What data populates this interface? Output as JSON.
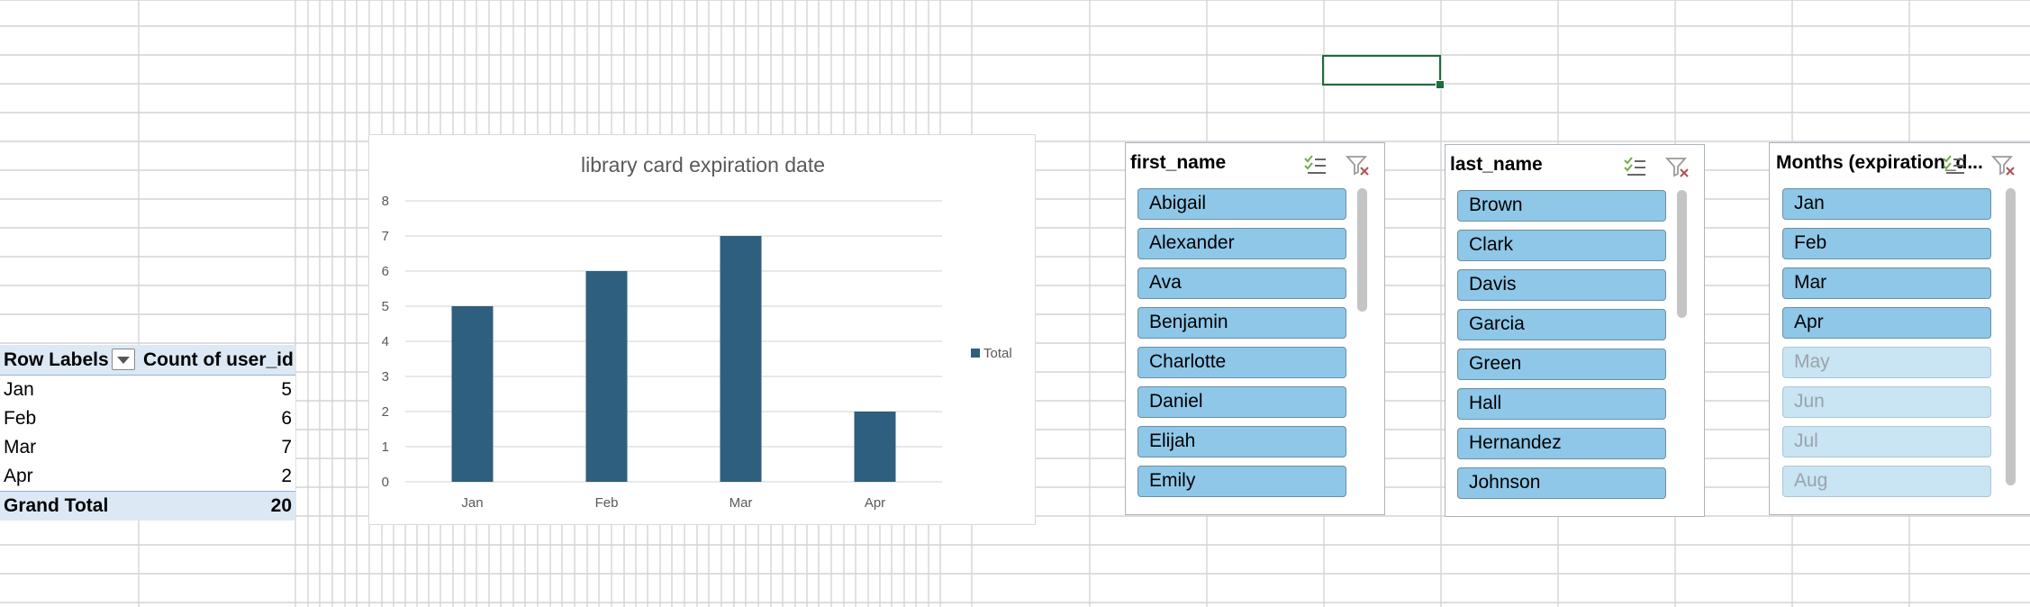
{
  "pivot": {
    "header_row_labels": "Row Labels",
    "header_value": "Count of user_id",
    "rows": [
      {
        "label": "Jan",
        "value": "5"
      },
      {
        "label": "Feb",
        "value": "6"
      },
      {
        "label": "Mar",
        "value": "7"
      },
      {
        "label": "Apr",
        "value": "2"
      }
    ],
    "grand_total_label": "Grand Total",
    "grand_total_value": "20"
  },
  "chart_data": {
    "type": "bar",
    "title": "library card expiration date",
    "categories": [
      "Jan",
      "Feb",
      "Mar",
      "Apr"
    ],
    "series": [
      {
        "name": "Total",
        "values": [
          5,
          6,
          7,
          2
        ],
        "color": "#2e5f7f"
      }
    ],
    "ylim": [
      0,
      8
    ],
    "yticks": [
      "0",
      "1",
      "2",
      "3",
      "4",
      "5",
      "6",
      "7",
      "8"
    ],
    "xlabel": "",
    "ylabel": "",
    "grid": true,
    "legend_position": "right"
  },
  "slicers": [
    {
      "title": "first_name",
      "items": [
        {
          "label": "Abigail",
          "selected": true
        },
        {
          "label": "Alexander",
          "selected": true
        },
        {
          "label": "Ava",
          "selected": true
        },
        {
          "label": "Benjamin",
          "selected": true
        },
        {
          "label": "Charlotte",
          "selected": true
        },
        {
          "label": "Daniel",
          "selected": true
        },
        {
          "label": "Elijah",
          "selected": true
        },
        {
          "label": "Emily",
          "selected": true
        }
      ]
    },
    {
      "title": "last_name",
      "items": [
        {
          "label": "Brown",
          "selected": true
        },
        {
          "label": "Clark",
          "selected": true
        },
        {
          "label": "Davis",
          "selected": true
        },
        {
          "label": "Garcia",
          "selected": true
        },
        {
          "label": "Green",
          "selected": true
        },
        {
          "label": "Hall",
          "selected": true
        },
        {
          "label": "Hernandez",
          "selected": true
        },
        {
          "label": "Johnson",
          "selected": true
        }
      ]
    },
    {
      "title": "Months (expiration_d...",
      "items": [
        {
          "label": "Jan",
          "selected": true
        },
        {
          "label": "Feb",
          "selected": true
        },
        {
          "label": "Mar",
          "selected": true
        },
        {
          "label": "Apr",
          "selected": true
        },
        {
          "label": "May",
          "selected": false
        },
        {
          "label": "Jun",
          "selected": false
        },
        {
          "label": "Jul",
          "selected": false
        },
        {
          "label": "Aug",
          "selected": false
        }
      ]
    }
  ],
  "icons": {
    "multi_select": "multi-select-icon",
    "clear_filter": "clear-filter-icon",
    "dropdown": "dropdown-arrow-icon"
  },
  "colors": {
    "accent_green": "#1e6b3c",
    "slicer_selected": "#8ec7e8",
    "slicer_unselected": "#c9e4f3",
    "pivot_header": "#dce9f5",
    "bar": "#2e5f7f"
  }
}
